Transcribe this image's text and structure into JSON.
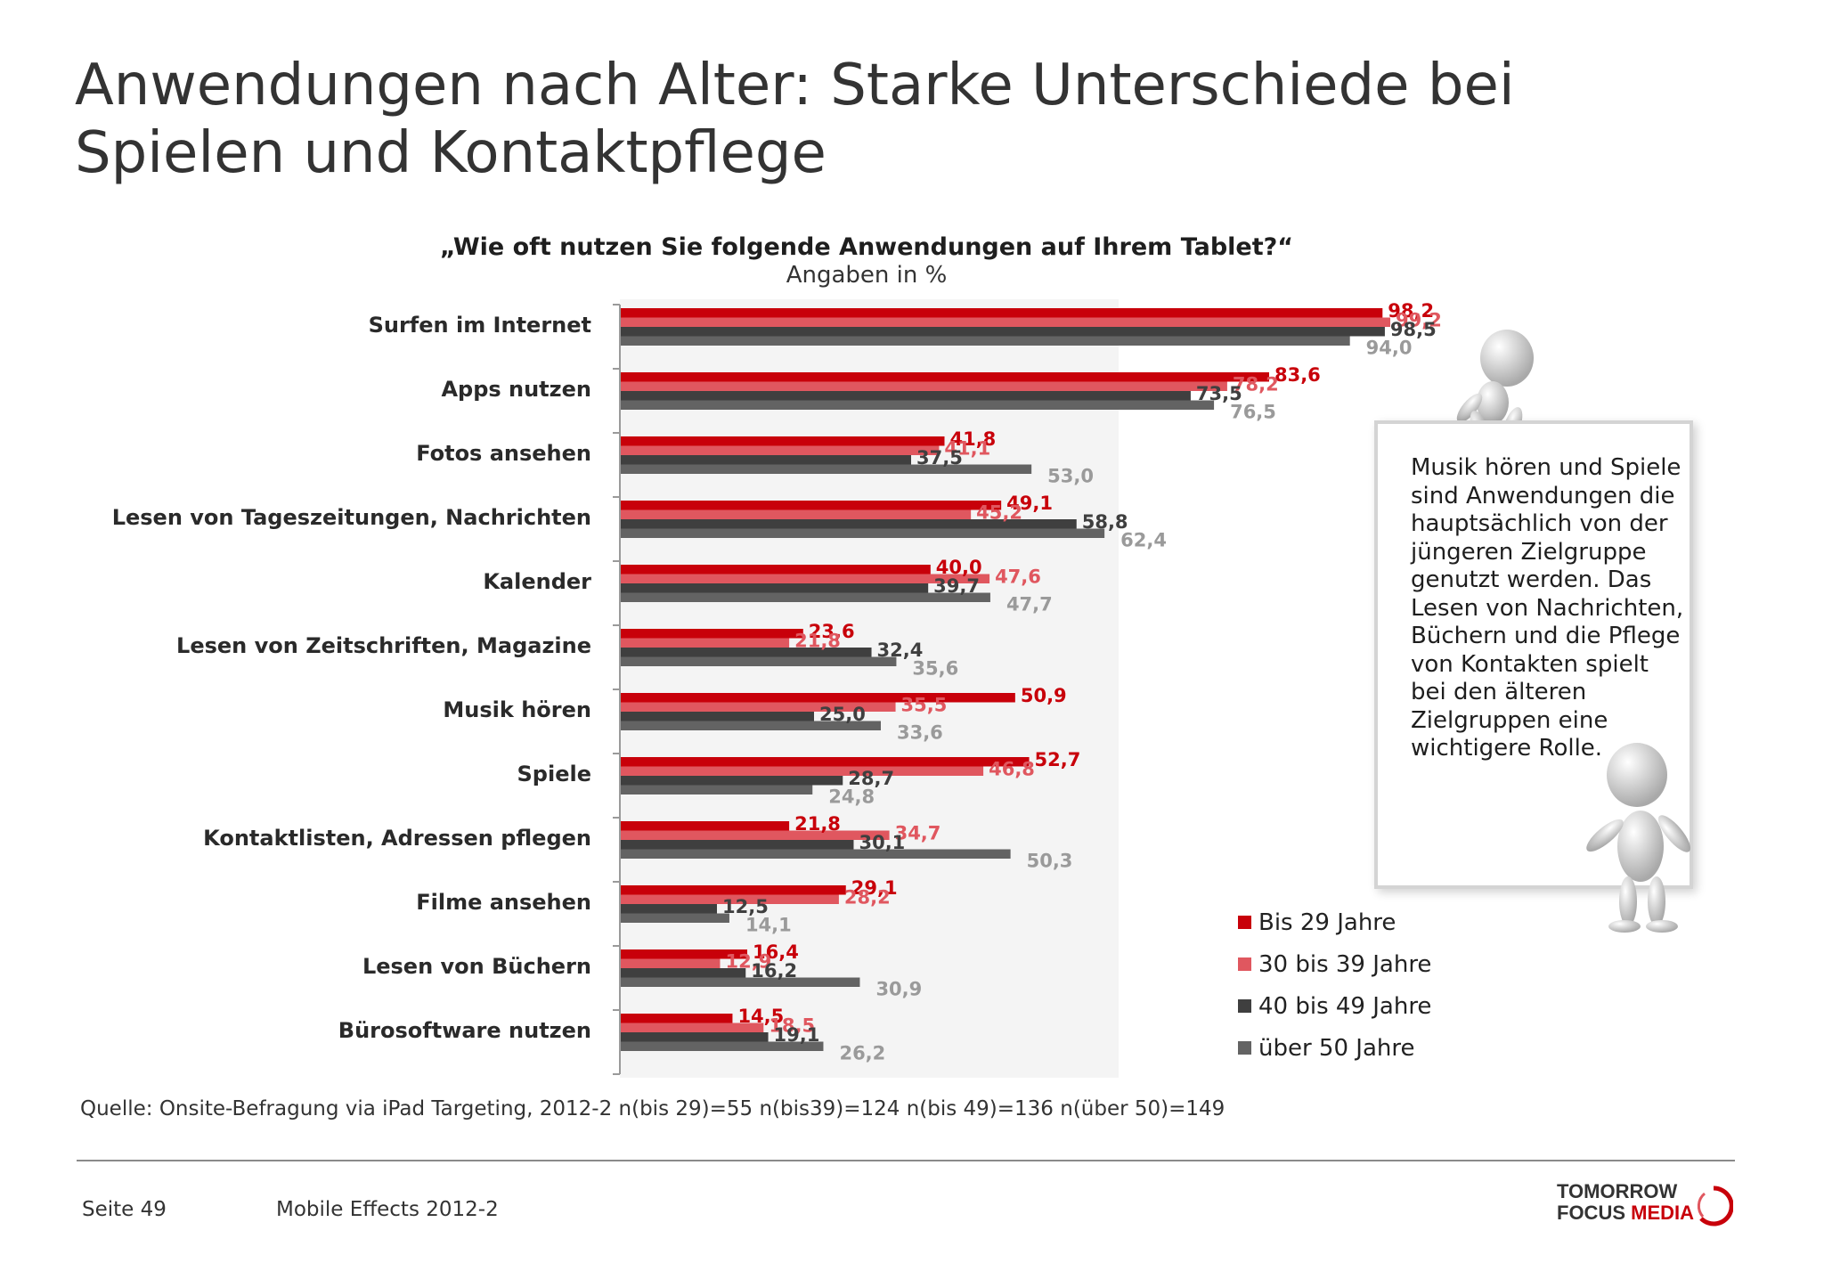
{
  "title": "Anwendungen nach Alter: Starke Unterschiede bei Spielen und Kontaktpflege",
  "chart_data": {
    "type": "bar",
    "orientation": "horizontal",
    "title": "„Wie oft nutzen Sie folgende Anwendungen auf Ihrem Tablet?“",
    "subtitle": "Angaben in %",
    "xlim": [
      0,
      100
    ],
    "categories": [
      "Surfen im Internet",
      "Apps nutzen",
      "Fotos ansehen",
      "Lesen von Tageszeitungen, Nachrichten",
      "Kalender",
      "Lesen von Zeitschriften, Magazine",
      "Musik hören",
      "Spiele",
      "Kontaktlisten, Adressen pflegen",
      "Filme ansehen",
      "Lesen von Büchern",
      "Bürosoftware nutzen"
    ],
    "series": [
      {
        "name": "Bis 29  Jahre",
        "color": "#c8000a",
        "values": [
          98.2,
          83.6,
          41.8,
          49.1,
          40.0,
          23.6,
          50.9,
          52.7,
          21.8,
          29.1,
          16.4,
          14.5
        ],
        "labels": [
          "98,2",
          "83,6",
          "41,8",
          "49,1",
          "40,0",
          "23,6",
          "50,9",
          "52,7",
          "21,8",
          "29,1",
          "16,4",
          "14,5"
        ]
      },
      {
        "name": "30 bis 39 Jahre",
        "color": "#e0575f",
        "values": [
          99.2,
          78.2,
          41.1,
          45.2,
          47.6,
          21.8,
          35.5,
          46.8,
          34.7,
          28.2,
          12.9,
          18.5
        ],
        "labels": [
          "99,2",
          "78,2",
          "41,1",
          "45,2",
          "47,6",
          "21,8",
          "35,5",
          "46,8",
          "34,7",
          "28,2",
          "12,9",
          "18,5"
        ]
      },
      {
        "name": "40 bis 49 Jahre",
        "color": "#3f3f3f",
        "values": [
          98.5,
          73.5,
          37.5,
          58.8,
          39.7,
          32.4,
          25.0,
          28.7,
          30.1,
          12.5,
          16.2,
          19.1
        ],
        "labels": [
          "98,5",
          "73,5",
          "37,5",
          "58,8",
          "39,7",
          "32,4",
          "25,0",
          "28,7",
          "30,1",
          "12,5",
          "16,2",
          "19,1"
        ]
      },
      {
        "name": "über 50 Jahre",
        "color": "#636363",
        "values": [
          94.0,
          76.5,
          53.0,
          62.4,
          47.7,
          35.6,
          33.6,
          24.8,
          50.3,
          14.1,
          30.9,
          26.2
        ],
        "labels": [
          "94,0",
          "76,5",
          "53,0",
          "62,4",
          "47,7",
          "35,6",
          "33,6",
          "24,8",
          "50,3",
          "14,1",
          "30,9",
          "26,2"
        ]
      }
    ],
    "label_colors": [
      "#c8000a",
      "#e0575f",
      "#3f3f3f",
      "#9a9a9a"
    ],
    "legend_position": "bottom-right"
  },
  "note": "Musik hören und Spiele sind Anwendungen die hauptsächlich von der jüngeren Zielgruppe genutzt werden. Das Lesen von Nachrichten, Büchern und die Pflege von Kontakten spielt bei den älteren Zielgruppen eine wichtigere Rolle.",
  "source": "Quelle: Onsite-Befragung via iPad Targeting, 2012-2 n(bis 29)=55 n(bis39)=124 n(bis 49)=136 n(über 50)=149",
  "footer": {
    "page": "Seite 49",
    "study": "Mobile Effects 2012-2"
  },
  "logo": {
    "line1": "TOMORROW",
    "line2a": "FOCUS ",
    "line2b": "MEDIA",
    "primary_color": "#333333",
    "accent_color": "#c8000a"
  }
}
